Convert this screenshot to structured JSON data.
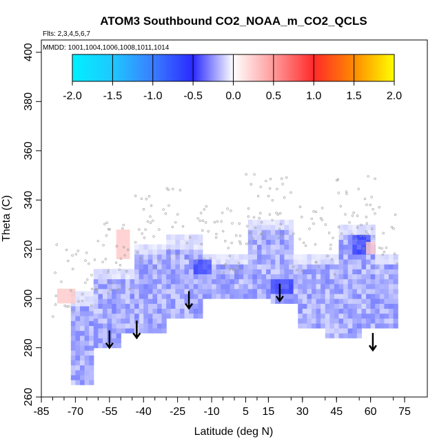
{
  "chart_data": {
    "type": "heatmap",
    "title": "ATOM3 Southbound CO2_NOAA_m_CO2_QCLS",
    "flights_note": "Flts: 2,3,4,5,6,7",
    "dates_note": "MMDD: 1001,1004,1006,1008,1011,1014",
    "xlabel": "Latitude (deg N)",
    "ylabel": "Theta (C)",
    "xlim": [
      -85,
      85
    ],
    "ylim": [
      260,
      405
    ],
    "x_ticks": [
      -85,
      -70,
      -55,
      -40,
      -25,
      -10,
      5,
      15,
      30,
      45,
      60,
      75
    ],
    "y_ticks": [
      260,
      280,
      300,
      320,
      340,
      360,
      380,
      400
    ],
    "colorbar": {
      "ticks": [
        "-2.0",
        "-1.5",
        "-1.0",
        "-0.5",
        "0.0",
        "0.5",
        "1.0",
        "1.5",
        "2.0"
      ],
      "range": [
        -2.0,
        2.0
      ],
      "colors": [
        "#00f0ff",
        "#2e9bff",
        "#2a2aff",
        "#ffffff",
        "#ff3030",
        "#ffa000",
        "#ffff00"
      ]
    },
    "tropopause_arrows_lat": [
      -55,
      -43,
      -20,
      20,
      61
    ],
    "tropopause_arrows_theta": [
      280,
      284,
      296,
      299,
      279
    ],
    "grid": false,
    "legend": "colorbar-top"
  }
}
